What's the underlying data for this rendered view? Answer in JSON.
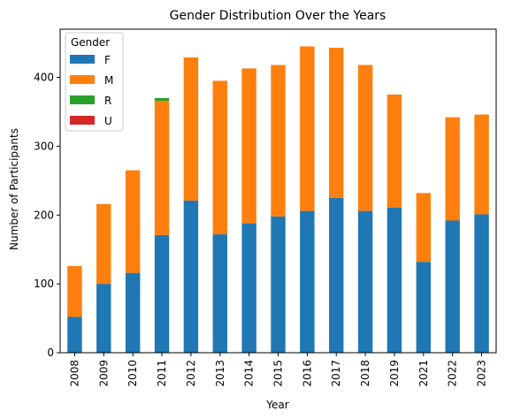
{
  "chart_data": {
    "type": "bar",
    "stacked": true,
    "title": "Gender Distribution Over the Years",
    "xlabel": "Year",
    "ylabel": "Number of Participants",
    "categories": [
      "2008",
      "2009",
      "2010",
      "2011",
      "2012",
      "2013",
      "2014",
      "2015",
      "2016",
      "2017",
      "2018",
      "2019",
      "2021",
      "2022",
      "2023"
    ],
    "ylim": [
      0,
      470
    ],
    "yticks": [
      0,
      100,
      200,
      300,
      400
    ],
    "grid": false,
    "legend": {
      "title": "Gender",
      "placement": "top-left"
    },
    "series": [
      {
        "name": "F",
        "color": "#1f77b4",
        "values": [
          52,
          100,
          116,
          171,
          221,
          172,
          188,
          198,
          206,
          225,
          206,
          211,
          132,
          192,
          201
        ]
      },
      {
        "name": "M",
        "color": "#ff7f0e",
        "values": [
          74,
          116,
          149,
          195,
          208,
          223,
          225,
          220,
          239,
          218,
          212,
          164,
          100,
          150,
          145
        ]
      },
      {
        "name": "R",
        "color": "#2ca02c",
        "values": [
          0,
          0,
          0,
          4,
          0,
          0,
          0,
          0,
          0,
          0,
          0,
          0,
          0,
          0,
          0
        ]
      },
      {
        "name": "U",
        "color": "#d62728",
        "values": [
          0,
          0,
          0,
          0,
          0,
          0,
          0,
          0,
          0,
          0,
          0,
          0,
          0,
          0,
          0
        ]
      }
    ]
  }
}
